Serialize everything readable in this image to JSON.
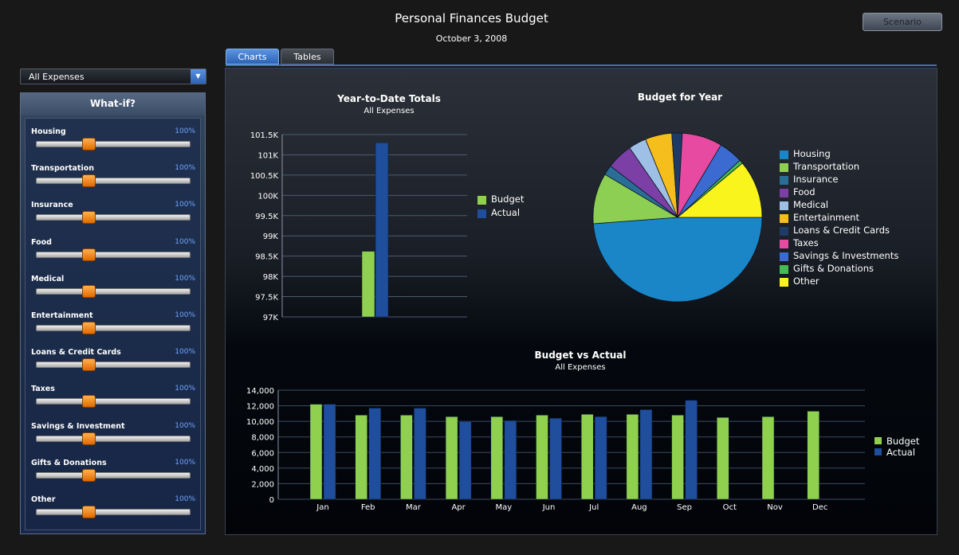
{
  "app": {
    "title": "Personal Finances Budget",
    "date": "October 3, 2008",
    "scenario_label": "Scenario"
  },
  "tabs": [
    {
      "label": "Charts",
      "active": true
    },
    {
      "label": "Tables",
      "active": false
    }
  ],
  "filter": {
    "selected": "All Expenses"
  },
  "whatif": {
    "title": "What-if?",
    "sliders": [
      {
        "label": "Housing",
        "value": "100%"
      },
      {
        "label": "Transportation",
        "value": "100%"
      },
      {
        "label": "Insurance",
        "value": "100%"
      },
      {
        "label": "Food",
        "value": "100%"
      },
      {
        "label": "Medical",
        "value": "100%"
      },
      {
        "label": "Entertainment",
        "value": "100%"
      },
      {
        "label": "Loans & Credit Cards",
        "value": "100%"
      },
      {
        "label": "Taxes",
        "value": "100%"
      },
      {
        "label": "Savings & Investment",
        "value": "100%"
      },
      {
        "label": "Gifts & Donations",
        "value": "100%"
      },
      {
        "label": "Other",
        "value": "100%"
      }
    ],
    "slider_level": 0.34
  },
  "colors": {
    "budget": "#8fd14f",
    "actual": "#1f4e9c",
    "accent": "#3a78d4",
    "slider_thumb": "#f07a10"
  },
  "chart_data": [
    {
      "type": "bar",
      "title": "Year-to-Date Totals",
      "subtitle": "All Expenses",
      "ylim": [
        97000,
        101500
      ],
      "yticks": [
        97000,
        97500,
        98000,
        98500,
        99000,
        99500,
        100000,
        100500,
        101000,
        101500
      ],
      "ytick_labels": [
        "97K",
        "97.5K",
        "98K",
        "98.5K",
        "99K",
        "99.5K",
        "100K",
        "100.5K",
        "101K",
        "101.5K"
      ],
      "series": [
        {
          "name": "Budget",
          "values": [
            98620
          ],
          "color": "#8fd14f"
        },
        {
          "name": "Actual",
          "values": [
            101300
          ],
          "color": "#1f4e9c"
        }
      ],
      "legend": "right"
    },
    {
      "type": "pie",
      "title": "Budget for Year",
      "slices": [
        {
          "label": "Housing",
          "value": 48.8,
          "color": "#1a86c8"
        },
        {
          "label": "Transportation",
          "value": 9.7,
          "color": "#8dcf52"
        },
        {
          "label": "Insurance",
          "value": 1.9,
          "color": "#2a6d96"
        },
        {
          "label": "Food",
          "value": 5.0,
          "color": "#7b3fa6"
        },
        {
          "label": "Medical",
          "value": 3.4,
          "color": "#9ebfe6"
        },
        {
          "label": "Entertainment",
          "value": 5.1,
          "color": "#f6be1c"
        },
        {
          "label": "Loans & Credit Cards",
          "value": 2.0,
          "color": "#1e3b66"
        },
        {
          "label": "Taxes",
          "value": 7.7,
          "color": "#e64aa1"
        },
        {
          "label": "Savings & Investments",
          "value": 4.6,
          "color": "#3b6bd0"
        },
        {
          "label": "Gifts & Donations",
          "value": 0.7,
          "color": "#44bb55"
        },
        {
          "label": "Other",
          "value": 11.1,
          "color": "#f8f41c"
        }
      ],
      "legend": "right"
    },
    {
      "type": "bar",
      "title": "Budget vs Actual",
      "subtitle": "All Expenses",
      "categories": [
        "Jan",
        "Feb",
        "Mar",
        "Apr",
        "May",
        "Jun",
        "Jul",
        "Aug",
        "Sep",
        "Oct",
        "Nov",
        "Dec"
      ],
      "ylim": [
        0,
        14000
      ],
      "yticks": [
        0,
        2000,
        4000,
        6000,
        8000,
        10000,
        12000,
        14000
      ],
      "ytick_labels": [
        "0",
        "2,000",
        "4,000",
        "6,000",
        "8,000",
        "10,000",
        "12,000",
        "14,000"
      ],
      "series": [
        {
          "name": "Budget",
          "values": [
            12200,
            10800,
            10800,
            10600,
            10600,
            10800,
            10900,
            10900,
            10800,
            10500,
            10600,
            11300
          ],
          "color": "#8fd14f"
        },
        {
          "name": "Actual",
          "values": [
            12200,
            11700,
            11700,
            10000,
            10100,
            10400,
            10600,
            11500,
            12700,
            null,
            null,
            null
          ],
          "color": "#1f4e9c"
        }
      ],
      "grid": true,
      "legend": "right"
    }
  ]
}
